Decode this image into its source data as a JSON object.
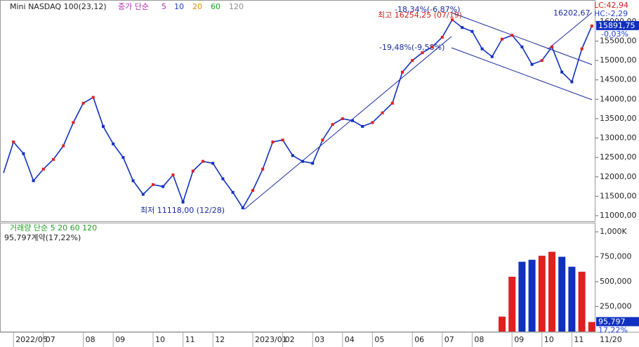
{
  "chart_data": [
    {
      "type": "line",
      "title": "Mini NASDAQ 100(23,12)",
      "legend_title": "종가 단순",
      "legend": [
        {
          "name": "5",
          "color": "#b030b0"
        },
        {
          "name": "10",
          "color": "#2040d0"
        },
        {
          "name": "20",
          "color": "#e09000"
        },
        {
          "name": "60",
          "color": "#20a020"
        },
        {
          "name": "120",
          "color": "#909090"
        }
      ],
      "categories": [
        null,
        "2022/05",
        null,
        null,
        "07",
        null,
        null,
        null,
        "08",
        null,
        null,
        "09",
        null,
        null,
        null,
        "10",
        null,
        null,
        "11",
        null,
        null,
        "12",
        null,
        null,
        null,
        "2023/01",
        null,
        null,
        "02",
        null,
        null,
        "03",
        null,
        null,
        "04",
        null,
        null,
        "05",
        null,
        null,
        null,
        "06",
        null,
        null,
        "07",
        null,
        null,
        "08",
        null,
        null,
        null,
        "09",
        null,
        null,
        "10",
        null,
        null,
        "11",
        null,
        null
      ],
      "x_end_label": "11/20",
      "series": [
        {
          "color": "#1030c0",
          "values": [
            12100,
            12900,
            12600,
            11900,
            12200,
            12450,
            12800,
            13400,
            13900,
            14050,
            13300,
            12850,
            12500,
            11900,
            11550,
            11800,
            11750,
            12050,
            11350,
            12150,
            12400,
            12350,
            11950,
            11600,
            11200,
            11650,
            12200,
            12900,
            12950,
            12550,
            12400,
            12350,
            12950,
            13350,
            13500,
            13450,
            13300,
            13400,
            13650,
            13900,
            14700,
            15000,
            15200,
            15350,
            15600,
            16050,
            15850,
            15750,
            15300,
            15100,
            15550,
            15650,
            15350,
            14900,
            15000,
            15350,
            14700,
            14450,
            15300,
            15891.75
          ]
        }
      ],
      "up_color": "#e02020",
      "down_color": "#1030c0",
      "ylim": [
        10855,
        16560
      ],
      "yticks": [
        {
          "value": 11000,
          "label": "11000,00"
        },
        {
          "value": 11500,
          "label": "11500,00"
        },
        {
          "value": 12000,
          "label": "12000,00"
        },
        {
          "value": 12500,
          "label": "12500,00"
        },
        {
          "value": 13000,
          "label": "13000,00"
        },
        {
          "value": 13500,
          "label": "13500,00"
        },
        {
          "value": 14000,
          "label": "14000,00"
        },
        {
          "value": 14500,
          "label": "14500,00"
        },
        {
          "value": 15000,
          "label": "15000,00"
        },
        {
          "value": 15500,
          "label": "15500,00"
        },
        {
          "value": 16000,
          "label": "16000,00"
        }
      ],
      "last_label": "15891,75",
      "change_label": "-0,03%",
      "lc_label": "LC:42,94",
      "hc_label": "HC:-2,29",
      "annotations": {
        "high": "최고 16254,25 (07/19)",
        "high_pct": "-18,34%(-6,87%)",
        "channel": "16202,67",
        "channel_pct": "-19,48%(-9,58%)",
        "low": "최저 11118,00 (12/28)"
      }
    },
    {
      "type": "bar",
      "title": "거래량 단순 5 20 60 120",
      "subtitle": "95,797계약(17,22%)",
      "values": [
        null,
        null,
        null,
        null,
        null,
        null,
        null,
        null,
        null,
        null,
        null,
        null,
        null,
        null,
        null,
        null,
        null,
        null,
        null,
        null,
        null,
        null,
        null,
        null,
        null,
        null,
        null,
        null,
        null,
        null,
        null,
        null,
        null,
        null,
        null,
        null,
        null,
        null,
        null,
        null,
        null,
        null,
        null,
        null,
        null,
        null,
        null,
        null,
        null,
        null,
        150000,
        550000,
        700000,
        720000,
        760000,
        800000,
        750000,
        650000,
        600000,
        95797
      ],
      "ylim": [
        0,
        1092000
      ],
      "yticks": [
        {
          "value": 250000,
          "label": "250,000"
        },
        {
          "value": 500000,
          "label": "500,000"
        },
        {
          "value": 750000,
          "label": "750,000"
        },
        {
          "value": 1000000,
          "label": "1,000K"
        }
      ],
      "last_label": "95,797",
      "pct_label": "17,22%"
    }
  ]
}
